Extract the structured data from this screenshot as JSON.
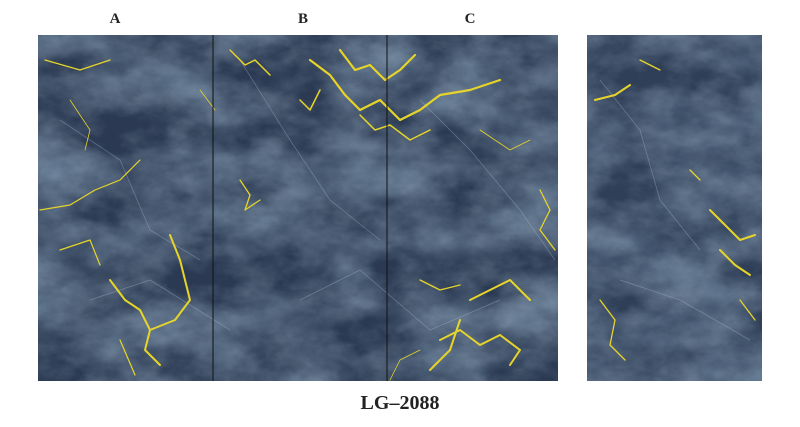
{
  "panel_labels": [
    "A",
    "B",
    "C"
  ],
  "caption": "LG–2088"
}
